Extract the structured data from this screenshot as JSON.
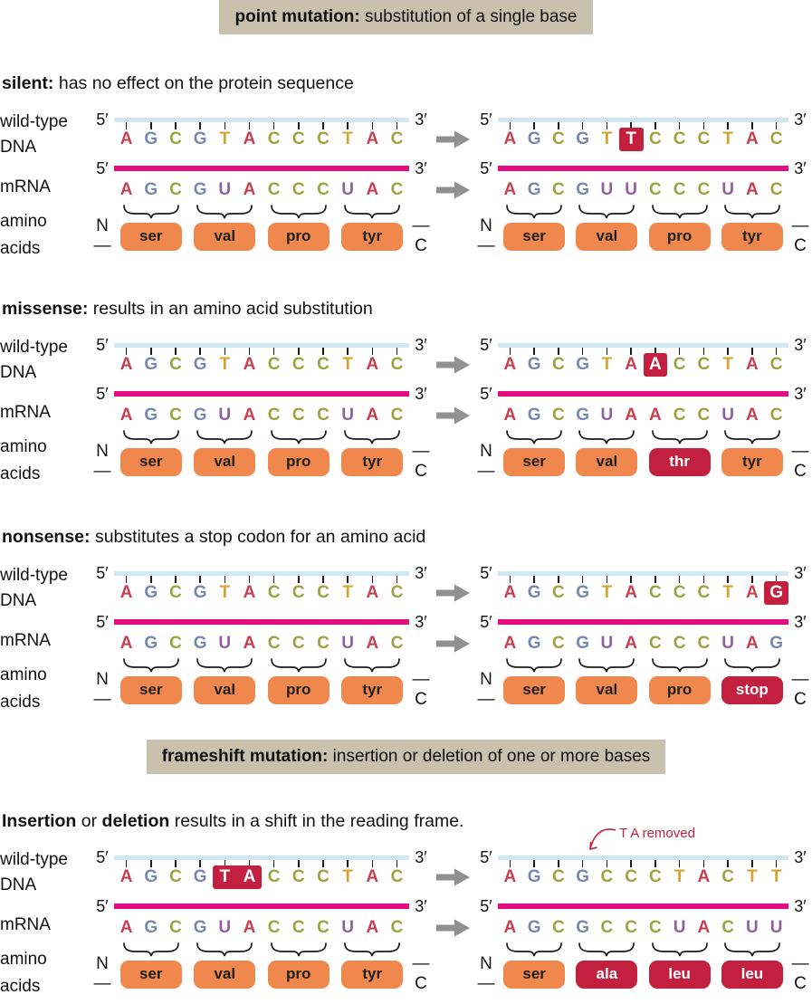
{
  "banners": [
    {
      "bold": "point mutation:",
      "rest": " substitution of a single base"
    },
    {
      "bold": "frameshift mutation:",
      "rest": " insertion or deletion of one or more bases"
    }
  ],
  "labels": {
    "wild_type": "wild-type",
    "dna": "DNA",
    "mrna": "mRNA",
    "amino_1": "amino",
    "amino_2": "acids",
    "five_prime": "5′",
    "three_prime": "3′",
    "n_terminus": "N—",
    "c_terminus": "—C"
  },
  "base_colors": {
    "A": "#c64150",
    "G": "#7688ae",
    "C": "#9aa441",
    "T": "#d8a230",
    "U": "#91619f"
  },
  "colors": {
    "banner_bg": "#c9c0ad",
    "dna_strand": "#cfe8f4",
    "mrna_strand": "#e50b80",
    "tick": "#1a1a1a",
    "brace": "#1a1a1a",
    "pill_normal_bg": "#f0884e",
    "pill_normal_text": "#1f1f1f",
    "pill_mutant_bg": "#c32040",
    "pill_mutant_text": "#ffffff",
    "highlight_bg": "#c32040",
    "highlight_text": "#ffffff",
    "arrow": "#919191",
    "annotation": "#c32040"
  },
  "sections": [
    {
      "banner_before": 0,
      "title_segments": [
        {
          "text": "silent:",
          "bold": true
        },
        {
          "text": " has no effect on the protein sequence",
          "bold": false
        }
      ],
      "panels": [
        {
          "dna": "AGCGTACCCTAC",
          "dna_highlights": [],
          "mrna": "AGCGUACCCUAC",
          "amino_acids": [
            {
              "label": "ser",
              "mutant": false
            },
            {
              "label": "val",
              "mutant": false
            },
            {
              "label": "pro",
              "mutant": false
            },
            {
              "label": "tyr",
              "mutant": false
            }
          ]
        },
        {
          "dna": "AGCGTTCCCTAC",
          "dna_highlights": [
            [
              5,
              5
            ]
          ],
          "mrna": "AGCGUUCCCUAC",
          "amino_acids": [
            {
              "label": "ser",
              "mutant": false
            },
            {
              "label": "val",
              "mutant": false
            },
            {
              "label": "pro",
              "mutant": false
            },
            {
              "label": "tyr",
              "mutant": false
            }
          ]
        }
      ]
    },
    {
      "title_segments": [
        {
          "text": "missense:",
          "bold": true
        },
        {
          "text": " results in an amino acid substitution",
          "bold": false
        }
      ],
      "panels": [
        {
          "dna": "AGCGTACCCTAC",
          "dna_highlights": [],
          "mrna": "AGCGUACCCUAC",
          "amino_acids": [
            {
              "label": "ser",
              "mutant": false
            },
            {
              "label": "val",
              "mutant": false
            },
            {
              "label": "pro",
              "mutant": false
            },
            {
              "label": "tyr",
              "mutant": false
            }
          ]
        },
        {
          "dna": "AGCGTAACCTAC",
          "dna_highlights": [
            [
              6,
              6
            ]
          ],
          "mrna": "AGCGUAACCUAC",
          "amino_acids": [
            {
              "label": "ser",
              "mutant": false
            },
            {
              "label": "val",
              "mutant": false
            },
            {
              "label": "thr",
              "mutant": true
            },
            {
              "label": "tyr",
              "mutant": false
            }
          ]
        }
      ]
    },
    {
      "title_segments": [
        {
          "text": "nonsense:",
          "bold": true
        },
        {
          "text": " substitutes a stop codon for an amino acid",
          "bold": false
        }
      ],
      "panels": [
        {
          "dna": "AGCGTACCCTAC",
          "dna_highlights": [],
          "mrna": "AGCGUACCCUAC",
          "amino_acids": [
            {
              "label": "ser",
              "mutant": false
            },
            {
              "label": "val",
              "mutant": false
            },
            {
              "label": "pro",
              "mutant": false
            },
            {
              "label": "tyr",
              "mutant": false
            }
          ]
        },
        {
          "dna": "AGCGTACCCTAG",
          "dna_highlights": [
            [
              11,
              11
            ]
          ],
          "mrna": "AGCGUACCCUAG",
          "amino_acids": [
            {
              "label": "ser",
              "mutant": false
            },
            {
              "label": "val",
              "mutant": false
            },
            {
              "label": "pro",
              "mutant": false
            },
            {
              "label": "stop",
              "mutant": true
            }
          ]
        }
      ]
    },
    {
      "banner_before": 1,
      "title_segments": [
        {
          "text": "Insertion",
          "bold": true
        },
        {
          "text": " or ",
          "bold": false
        },
        {
          "text": "deletion",
          "bold": true
        },
        {
          "text": " results in a shift in the reading frame.",
          "bold": false
        }
      ],
      "annotation": "T A removed",
      "panels": [
        {
          "dna": "AGCGTACCCTAC",
          "dna_highlights": [
            [
              4,
              5
            ]
          ],
          "mrna": "AGCGUACCCUAC",
          "amino_acids": [
            {
              "label": "ser",
              "mutant": false
            },
            {
              "label": "val",
              "mutant": false
            },
            {
              "label": "pro",
              "mutant": false
            },
            {
              "label": "tyr",
              "mutant": false
            }
          ]
        },
        {
          "dna": "AGCGCCCTACTT",
          "dna_highlights": [],
          "mrna": "AGCGCCCUACUU",
          "amino_acids": [
            {
              "label": "ser",
              "mutant": false
            },
            {
              "label": "ala",
              "mutant": true
            },
            {
              "label": "leu",
              "mutant": true
            },
            {
              "label": "leu",
              "mutant": true
            }
          ]
        }
      ]
    }
  ]
}
